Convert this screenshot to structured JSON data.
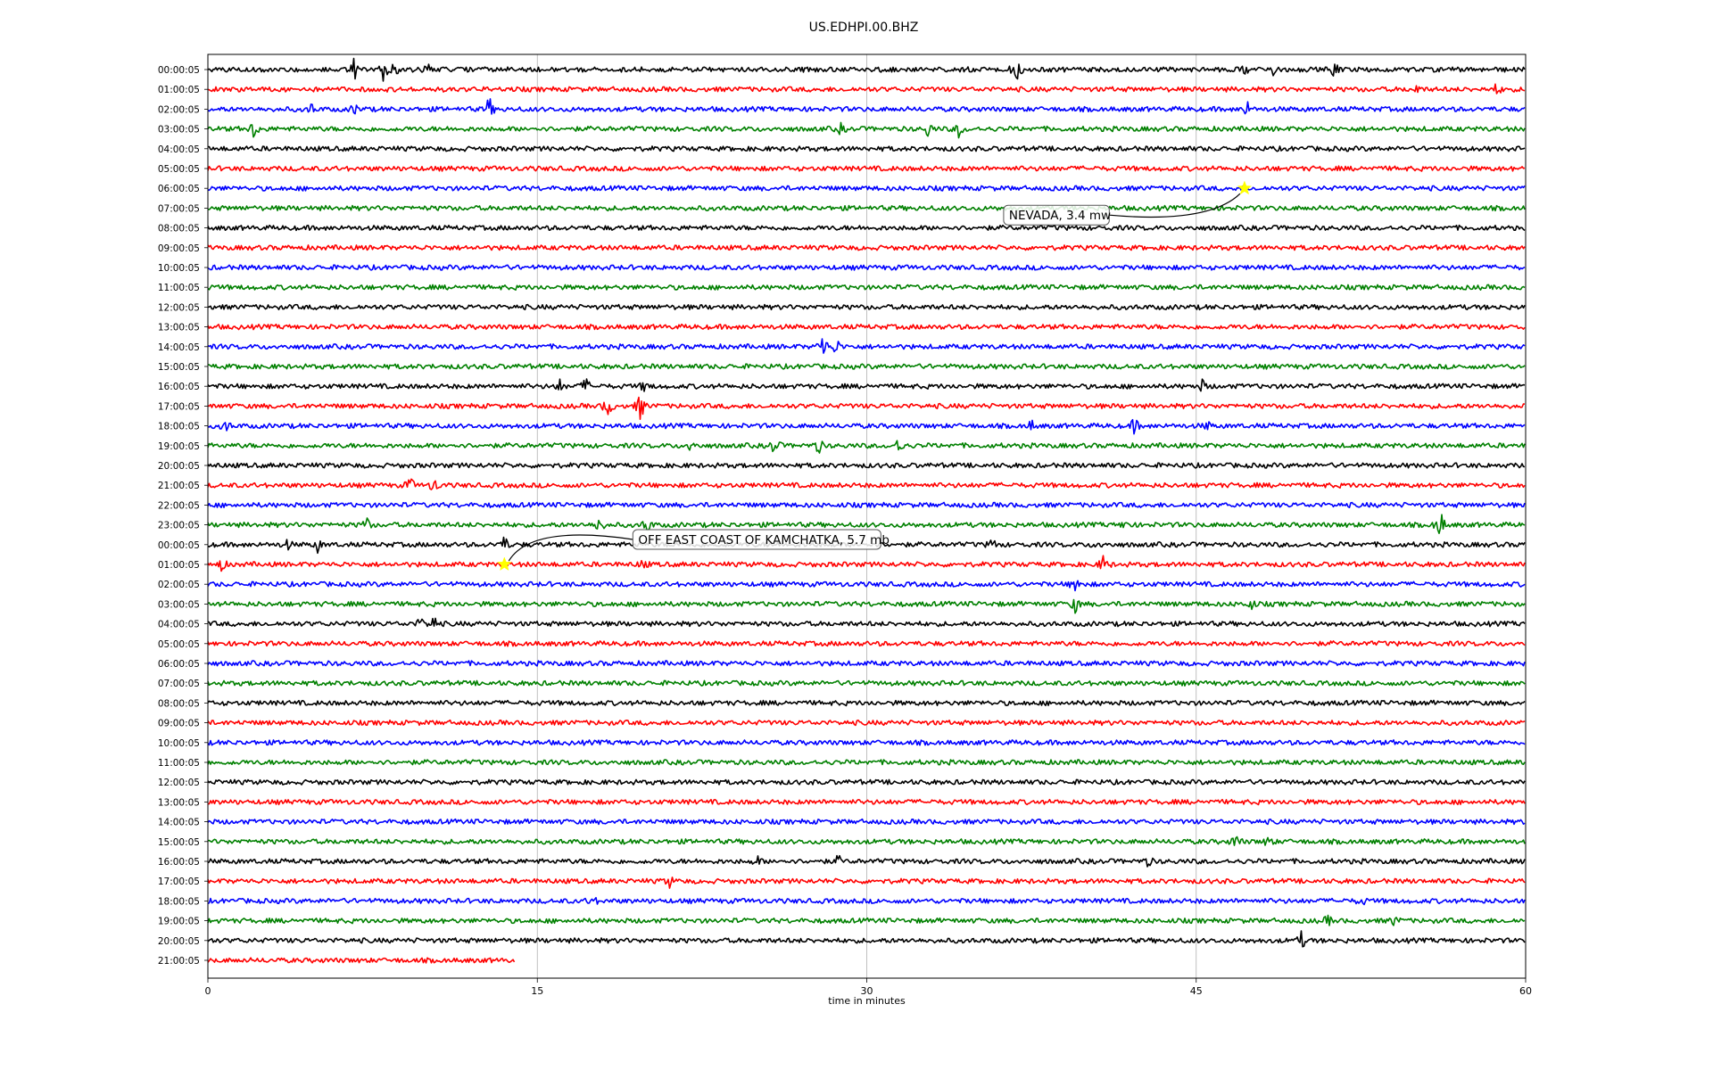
{
  "chart_data": {
    "type": "line",
    "title": "US.EDHPI.00.BHZ",
    "xlabel": "time in minutes",
    "ylabel": "",
    "xlim": [
      0,
      60
    ],
    "xticks": [
      0,
      15,
      30,
      45,
      60
    ],
    "grid": "vertical",
    "trace_colors": [
      "#000000",
      "#ff0000",
      "#0000ff",
      "#008000"
    ],
    "row_labels": [
      "00:00:05",
      "01:00:05",
      "02:00:05",
      "03:00:05",
      "04:00:05",
      "05:00:05",
      "06:00:05",
      "07:00:05",
      "08:00:05",
      "09:00:05",
      "10:00:05",
      "11:00:05",
      "12:00:05",
      "13:00:05",
      "14:00:05",
      "15:00:05",
      "16:00:05",
      "17:00:05",
      "18:00:05",
      "19:00:05",
      "20:00:05",
      "21:00:05",
      "22:00:05",
      "23:00:05",
      "00:00:05",
      "01:00:05",
      "02:00:05",
      "03:00:05",
      "04:00:05",
      "05:00:05",
      "06:00:05",
      "07:00:05",
      "08:00:05",
      "09:00:05",
      "10:00:05",
      "11:00:05",
      "12:00:05",
      "13:00:05",
      "14:00:05",
      "15:00:05",
      "16:00:05",
      "17:00:05",
      "18:00:05",
      "19:00:05",
      "20:00:05",
      "21:00:05"
    ],
    "last_row_end_minute": 14,
    "bursts": [
      {
        "row": 0,
        "minute": 6.7,
        "amp": 3.5
      },
      {
        "row": 0,
        "minute": 8.0,
        "amp": 3.0
      },
      {
        "row": 0,
        "minute": 8.5,
        "amp": 1.5
      },
      {
        "row": 0,
        "minute": 10.0,
        "amp": 1.5
      },
      {
        "row": 0,
        "minute": 36.8,
        "amp": 3.5
      },
      {
        "row": 0,
        "minute": 47.2,
        "amp": 1.5
      },
      {
        "row": 0,
        "minute": 48.5,
        "amp": 1.5
      },
      {
        "row": 0,
        "minute": 51.3,
        "amp": 2.0
      },
      {
        "row": 1,
        "minute": 55.0,
        "amp": 1.2
      },
      {
        "row": 1,
        "minute": 58.7,
        "amp": 1.5
      },
      {
        "row": 2,
        "minute": 4.7,
        "amp": 1.2
      },
      {
        "row": 2,
        "minute": 6.7,
        "amp": 1.2
      },
      {
        "row": 2,
        "minute": 12.8,
        "amp": 3.0
      },
      {
        "row": 2,
        "minute": 47.3,
        "amp": 2.0
      },
      {
        "row": 3,
        "minute": 2.1,
        "amp": 2.5
      },
      {
        "row": 3,
        "minute": 28.8,
        "amp": 1.2
      },
      {
        "row": 3,
        "minute": 32.8,
        "amp": 2.0
      },
      {
        "row": 3,
        "minute": 34.2,
        "amp": 2.0
      },
      {
        "row": 14,
        "minute": 28.0,
        "amp": 3.5
      },
      {
        "row": 14,
        "minute": 28.6,
        "amp": 2.0
      },
      {
        "row": 16,
        "minute": 16.0,
        "amp": 1.5
      },
      {
        "row": 16,
        "minute": 17.2,
        "amp": 2.0
      },
      {
        "row": 16,
        "minute": 19.9,
        "amp": 1.5
      },
      {
        "row": 16,
        "minute": 45.3,
        "amp": 1.5
      },
      {
        "row": 17,
        "minute": 18.2,
        "amp": 3.0
      },
      {
        "row": 17,
        "minute": 19.7,
        "amp": 3.5
      },
      {
        "row": 18,
        "minute": 0.8,
        "amp": 1.5
      },
      {
        "row": 18,
        "minute": 37.5,
        "amp": 1.2
      },
      {
        "row": 18,
        "minute": 42.2,
        "amp": 2.0
      },
      {
        "row": 18,
        "minute": 45.5,
        "amp": 1.0
      },
      {
        "row": 19,
        "minute": 22.0,
        "amp": 1.5
      },
      {
        "row": 19,
        "minute": 25.8,
        "amp": 2.5
      },
      {
        "row": 19,
        "minute": 27.8,
        "amp": 2.0
      },
      {
        "row": 19,
        "minute": 31.5,
        "amp": 2.5
      },
      {
        "row": 21,
        "minute": 9.2,
        "amp": 2.0
      },
      {
        "row": 21,
        "minute": 10.3,
        "amp": 2.0
      },
      {
        "row": 23,
        "minute": 7.2,
        "amp": 2.0
      },
      {
        "row": 23,
        "minute": 17.8,
        "amp": 2.5
      },
      {
        "row": 23,
        "minute": 20.0,
        "amp": 2.0
      },
      {
        "row": 23,
        "minute": 41.8,
        "amp": 1.2
      },
      {
        "row": 23,
        "minute": 56.1,
        "amp": 4.0
      },
      {
        "row": 24,
        "minute": 3.6,
        "amp": 1.2
      },
      {
        "row": 24,
        "minute": 5.0,
        "amp": 1.5
      },
      {
        "row": 24,
        "minute": 13.5,
        "amp": 2.0
      },
      {
        "row": 24,
        "minute": 35.7,
        "amp": 1.5
      },
      {
        "row": 24,
        "minute": 40.5,
        "amp": 1.0
      },
      {
        "row": 25,
        "minute": 0.6,
        "amp": 1.5
      },
      {
        "row": 25,
        "minute": 19.8,
        "amp": 1.2
      },
      {
        "row": 25,
        "minute": 40.8,
        "amp": 2.5
      },
      {
        "row": 26,
        "minute": 39.5,
        "amp": 2.5
      },
      {
        "row": 27,
        "minute": 39.5,
        "amp": 2.0
      },
      {
        "row": 27,
        "minute": 47.5,
        "amp": 1.2
      },
      {
        "row": 28,
        "minute": 9.7,
        "amp": 1.5
      },
      {
        "row": 28,
        "minute": 10.3,
        "amp": 2.0
      },
      {
        "row": 39,
        "minute": 46.8,
        "amp": 2.0
      },
      {
        "row": 39,
        "minute": 48.3,
        "amp": 1.5
      },
      {
        "row": 40,
        "minute": 25.0,
        "amp": 1.2
      },
      {
        "row": 40,
        "minute": 28.7,
        "amp": 1.2
      },
      {
        "row": 40,
        "minute": 42.8,
        "amp": 1.2
      },
      {
        "row": 41,
        "minute": 21.0,
        "amp": 1.5
      },
      {
        "row": 42,
        "minute": 17.5,
        "amp": 1.5
      },
      {
        "row": 42,
        "minute": 52.5,
        "amp": 1.2
      },
      {
        "row": 43,
        "minute": 51.0,
        "amp": 1.2
      },
      {
        "row": 43,
        "minute": 54.0,
        "amp": 1.2
      },
      {
        "row": 44,
        "minute": 49.8,
        "amp": 2.0
      }
    ],
    "events": [
      {
        "label": "NEVADA, 3.4 mw",
        "row": 6,
        "minute": 47.2
      },
      {
        "label": "OFF EAST COAST OF KAMCHATKA, 5.7 mb",
        "row": 25,
        "minute": 13.5
      }
    ],
    "event_marker_color": "#ffff00"
  }
}
